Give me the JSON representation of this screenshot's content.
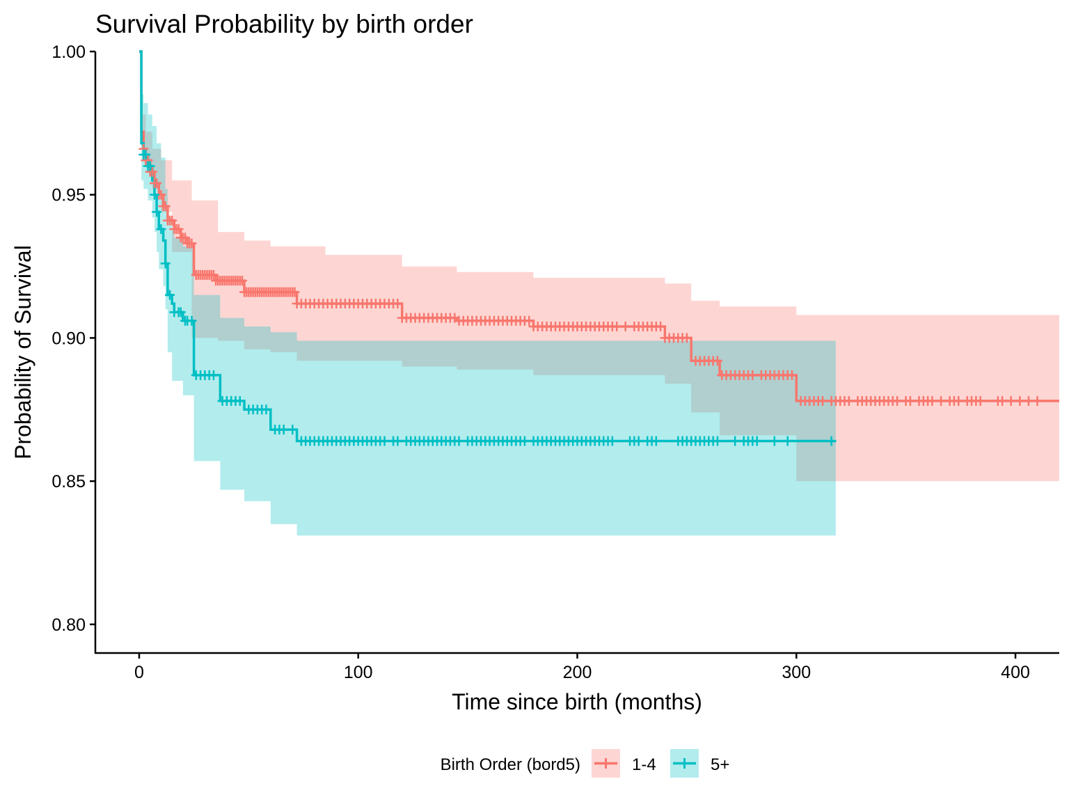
{
  "chart_data": {
    "type": "line",
    "title": "Survival Probability by birth order",
    "xlabel": "Time since birth (months)",
    "ylabel": "Probability of Survival",
    "xlim": [
      -20,
      420
    ],
    "ylim": [
      0.79,
      1.0
    ],
    "x_ticks": [
      "0",
      "100",
      "200",
      "300",
      "400"
    ],
    "x_tick_values": [
      0,
      100,
      200,
      300,
      400
    ],
    "y_ticks": [
      "0.80",
      "0.85",
      "0.90",
      "0.95",
      "1.00"
    ],
    "y_tick_values": [
      0.8,
      0.85,
      0.9,
      0.95,
      1.0
    ],
    "grid": false,
    "legend": {
      "title": "Birth Order (bord5)",
      "position": "bottom",
      "entries": [
        "1-4",
        "5+"
      ]
    },
    "series": [
      {
        "name": "1-4",
        "color": "#F8766D",
        "steps": [
          [
            0,
            1.0
          ],
          [
            1,
            0.972
          ],
          [
            2,
            0.966
          ],
          [
            3,
            0.962
          ],
          [
            5,
            0.958
          ],
          [
            7,
            0.954
          ],
          [
            9,
            0.95
          ],
          [
            11,
            0.946
          ],
          [
            13,
            0.941
          ],
          [
            16,
            0.938
          ],
          [
            19,
            0.935
          ],
          [
            22,
            0.933
          ],
          [
            25,
            0.922
          ],
          [
            35,
            0.92
          ],
          [
            48,
            0.916
          ],
          [
            72,
            0.912
          ],
          [
            120,
            0.907
          ],
          [
            145,
            0.906
          ],
          [
            180,
            0.904
          ],
          [
            240,
            0.9
          ],
          [
            252,
            0.892
          ],
          [
            265,
            0.887
          ],
          [
            300,
            0.878
          ],
          [
            420,
            0.878
          ]
        ],
        "upper": [
          [
            0,
            1.0
          ],
          [
            1,
            0.978
          ],
          [
            3,
            0.972
          ],
          [
            6,
            0.966
          ],
          [
            10,
            0.962
          ],
          [
            15,
            0.955
          ],
          [
            24,
            0.948
          ],
          [
            36,
            0.937
          ],
          [
            48,
            0.934
          ],
          [
            60,
            0.932
          ],
          [
            85,
            0.929
          ],
          [
            120,
            0.925
          ],
          [
            145,
            0.923
          ],
          [
            180,
            0.921
          ],
          [
            240,
            0.919
          ],
          [
            252,
            0.913
          ],
          [
            265,
            0.911
          ],
          [
            300,
            0.908
          ],
          [
            420,
            0.908
          ]
        ],
        "lower": [
          [
            0,
            1.0
          ],
          [
            1,
            0.966
          ],
          [
            3,
            0.96
          ],
          [
            6,
            0.952
          ],
          [
            10,
            0.944
          ],
          [
            15,
            0.93
          ],
          [
            24,
            0.9
          ],
          [
            36,
            0.899
          ],
          [
            48,
            0.896
          ],
          [
            60,
            0.895
          ],
          [
            72,
            0.892
          ],
          [
            120,
            0.89
          ],
          [
            145,
            0.889
          ],
          [
            180,
            0.887
          ],
          [
            240,
            0.884
          ],
          [
            252,
            0.874
          ],
          [
            265,
            0.866
          ],
          [
            300,
            0.85
          ],
          [
            420,
            0.85
          ]
        ],
        "censor_x": [
          2,
          3,
          4,
          5,
          6,
          7,
          8,
          9,
          10,
          11,
          12,
          13,
          14,
          15,
          16,
          17,
          18,
          19,
          20,
          21,
          22,
          23,
          24,
          26,
          27,
          28,
          29,
          30,
          31,
          32,
          33,
          34,
          35,
          36,
          37,
          38,
          39,
          40,
          41,
          42,
          43,
          44,
          45,
          46,
          47,
          48,
          49,
          50,
          51,
          52,
          53,
          54,
          55,
          56,
          57,
          58,
          59,
          60,
          61,
          62,
          63,
          64,
          65,
          66,
          67,
          68,
          69,
          70,
          71,
          72,
          74,
          76,
          78,
          80,
          82,
          84,
          86,
          88,
          90,
          92,
          94,
          96,
          98,
          100,
          102,
          104,
          106,
          108,
          110,
          112,
          114,
          116,
          118,
          120,
          122,
          124,
          126,
          128,
          130,
          132,
          134,
          136,
          138,
          140,
          142,
          144,
          146,
          148,
          150,
          152,
          154,
          156,
          158,
          160,
          162,
          164,
          166,
          168,
          170,
          172,
          174,
          176,
          178,
          180,
          182,
          184,
          186,
          188,
          190,
          192,
          194,
          196,
          198,
          200,
          202,
          204,
          206,
          208,
          210,
          212,
          214,
          216,
          218,
          222,
          226,
          228,
          230,
          232,
          234,
          236,
          238,
          240,
          242,
          244,
          246,
          248,
          250,
          254,
          256,
          258,
          260,
          262,
          264,
          266,
          268,
          270,
          272,
          274,
          276,
          278,
          280,
          284,
          286,
          288,
          290,
          292,
          294,
          296,
          298,
          302,
          304,
          306,
          308,
          310,
          312,
          316,
          318,
          320,
          322,
          324,
          328,
          330,
          332,
          334,
          336,
          338,
          340,
          342,
          344,
          346,
          350,
          352,
          356,
          358,
          360,
          362,
          366,
          370,
          372,
          374,
          378,
          380,
          382,
          384,
          392,
          394,
          398,
          402,
          406,
          410
        ]
      },
      {
        "name": "5+",
        "color": "#00BFC4",
        "steps": [
          [
            0,
            1.0
          ],
          [
            1,
            0.968
          ],
          [
            2,
            0.964
          ],
          [
            4,
            0.96
          ],
          [
            6,
            0.955
          ],
          [
            7,
            0.95
          ],
          [
            8,
            0.944
          ],
          [
            9,
            0.938
          ],
          [
            11,
            0.934
          ],
          [
            12,
            0.926
          ],
          [
            13,
            0.915
          ],
          [
            15,
            0.912
          ],
          [
            16,
            0.909
          ],
          [
            20,
            0.906
          ],
          [
            25,
            0.887
          ],
          [
            37,
            0.878
          ],
          [
            48,
            0.875
          ],
          [
            60,
            0.868
          ],
          [
            72,
            0.864
          ],
          [
            318,
            0.864
          ]
        ],
        "upper": [
          [
            0,
            1.0
          ],
          [
            1,
            0.985
          ],
          [
            2,
            0.982
          ],
          [
            4,
            0.978
          ],
          [
            6,
            0.974
          ],
          [
            8,
            0.968
          ],
          [
            10,
            0.963
          ],
          [
            12,
            0.952
          ],
          [
            13,
            0.942
          ],
          [
            15,
            0.938
          ],
          [
            16,
            0.935
          ],
          [
            20,
            0.932
          ],
          [
            25,
            0.915
          ],
          [
            37,
            0.907
          ],
          [
            48,
            0.904
          ],
          [
            60,
            0.902
          ],
          [
            72,
            0.899
          ],
          [
            318,
            0.899
          ]
        ],
        "lower": [
          [
            0,
            1.0
          ],
          [
            1,
            0.955
          ],
          [
            2,
            0.952
          ],
          [
            4,
            0.948
          ],
          [
            6,
            0.942
          ],
          [
            7,
            0.937
          ],
          [
            8,
            0.93
          ],
          [
            9,
            0.924
          ],
          [
            11,
            0.918
          ],
          [
            12,
            0.91
          ],
          [
            13,
            0.895
          ],
          [
            15,
            0.885
          ],
          [
            20,
            0.88
          ],
          [
            25,
            0.857
          ],
          [
            37,
            0.847
          ],
          [
            48,
            0.843
          ],
          [
            60,
            0.835
          ],
          [
            72,
            0.831
          ],
          [
            318,
            0.831
          ]
        ],
        "censor_x": [
          2,
          3,
          4,
          5,
          7,
          8,
          10,
          12,
          14,
          16,
          18,
          19,
          21,
          22,
          24,
          26,
          28,
          30,
          32,
          34,
          38,
          40,
          42,
          44,
          46,
          50,
          52,
          54,
          56,
          58,
          62,
          64,
          66,
          70,
          74,
          76,
          78,
          80,
          82,
          84,
          86,
          88,
          90,
          92,
          94,
          96,
          98,
          100,
          102,
          104,
          106,
          108,
          110,
          112,
          116,
          118,
          122,
          124,
          126,
          128,
          130,
          132,
          134,
          136,
          138,
          140,
          142,
          144,
          146,
          150,
          152,
          154,
          156,
          158,
          160,
          162,
          164,
          166,
          168,
          170,
          172,
          174,
          176,
          180,
          182,
          184,
          186,
          188,
          190,
          192,
          194,
          196,
          198,
          200,
          202,
          204,
          206,
          208,
          210,
          212,
          214,
          216,
          224,
          226,
          228,
          232,
          234,
          236,
          246,
          248,
          250,
          252,
          254,
          256,
          258,
          260,
          262,
          264,
          272,
          276,
          278,
          280,
          282,
          290,
          296,
          316
        ]
      }
    ]
  }
}
